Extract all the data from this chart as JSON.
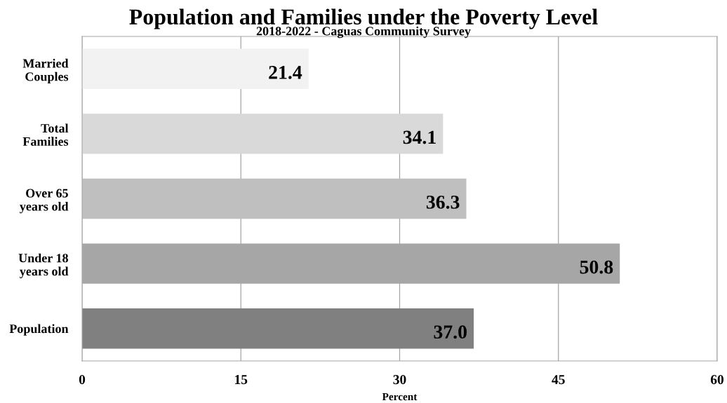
{
  "chart_data": {
    "type": "bar",
    "orientation": "horizontal",
    "title": "Population and Families under the Poverty Level",
    "subtitle": "2018-2022 - Caguas Community Survey",
    "xlabel": "Percent",
    "categories": [
      "Married\nCouples",
      "Total\nFamilies",
      "Over 65\nyears old",
      "Under 18\nyears old",
      "Population"
    ],
    "values": [
      21.4,
      34.1,
      36.3,
      50.8,
      37.0
    ],
    "value_labels": [
      "21.4",
      "34.1",
      "36.3",
      "50.8",
      "37.0"
    ],
    "colors": [
      "#f2f2f2",
      "#d9d9d9",
      "#bfbfbf",
      "#a6a6a6",
      "#808080"
    ],
    "xlim": [
      0,
      60
    ],
    "xticks": [
      0,
      15,
      30,
      45,
      60
    ],
    "grid": "x",
    "legend": false
  }
}
